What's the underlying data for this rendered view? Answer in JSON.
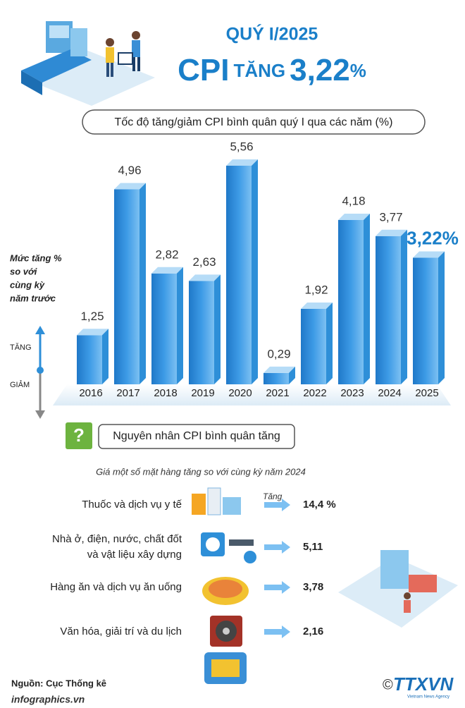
{
  "header": {
    "period": "QUÝ I/2025",
    "title_main": "CPI",
    "title_verb": "TĂNG",
    "title_value": "3,22",
    "title_unit": "%"
  },
  "chart_data": {
    "type": "bar",
    "title": "Tốc độ tăng/giảm CPI bình quân quý I qua các năm (%)",
    "y_label": [
      "Mức tăng %",
      "so với",
      "cùng kỳ",
      "năm trước"
    ],
    "up_label": "TĂNG",
    "down_label": "GIẢM",
    "categories": [
      "2016",
      "2017",
      "2018",
      "2019",
      "2020",
      "2021",
      "2022",
      "2023",
      "2024",
      "2025"
    ],
    "values": [
      1.25,
      4.96,
      2.82,
      2.63,
      5.56,
      0.29,
      1.92,
      4.18,
      3.77,
      3.22
    ],
    "value_labels": [
      "1,25",
      "4,96",
      "2,82",
      "2,63",
      "5,56",
      "0,29",
      "1,92",
      "4,18",
      "3,77",
      "3,22%"
    ],
    "color": "#2e8fd8"
  },
  "causes": {
    "icon": "?",
    "title": "Nguyên nhân CPI bình quân tăng",
    "subtitle": "Giá một số mặt hàng tăng so với cùng kỳ năm 2024",
    "arrow_note": "Tăng",
    "items": [
      {
        "label": [
          "Thuốc và dịch vụ y tế"
        ],
        "value": "14,4 %"
      },
      {
        "label": [
          "Nhà ở, điện, nước, chất đốt",
          "và vật liệu xây dựng"
        ],
        "value": "5,11"
      },
      {
        "label": [
          "Hàng ăn và dịch vụ ăn uống"
        ],
        "value": "3,78"
      },
      {
        "label": [
          "Văn hóa, giải trí và du lịch"
        ],
        "value": "2,16"
      }
    ]
  },
  "footer": {
    "source": "Nguồn: Cục Thống kê",
    "site": "infographics.vn",
    "copyright": "©",
    "agency": "TTXVN",
    "agency_sub": "Vietnam News Agency"
  }
}
